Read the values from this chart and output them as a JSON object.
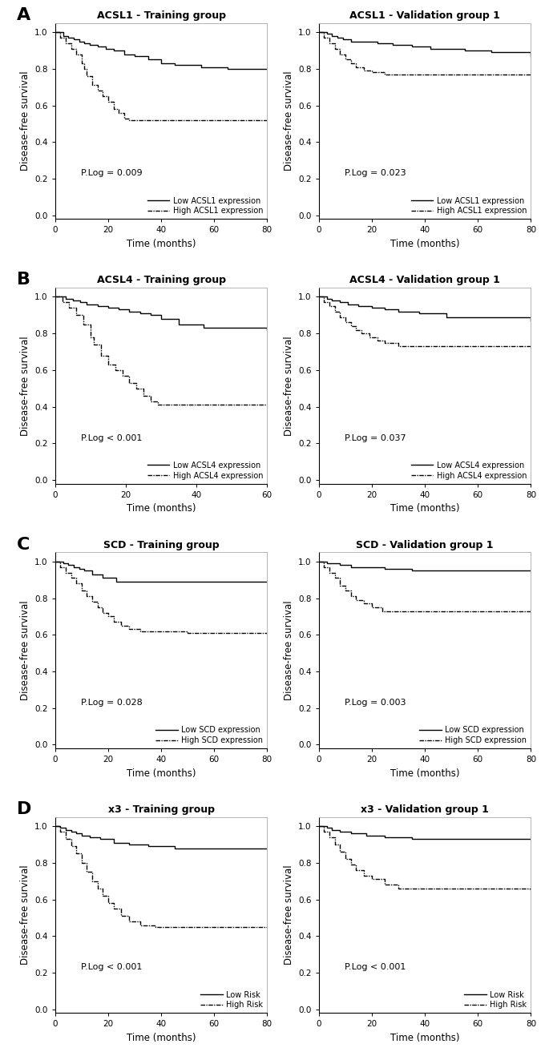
{
  "panels": [
    {
      "row": 0,
      "col": 0,
      "title": "ACSL1 - Training group",
      "plog": "P.Log = 0.009",
      "xmax": 80,
      "low_x": [
        0,
        3,
        5,
        7,
        9,
        11,
        13,
        16,
        19,
        22,
        26,
        30,
        35,
        40,
        45,
        55,
        65,
        80
      ],
      "low_y": [
        1.0,
        0.98,
        0.97,
        0.96,
        0.95,
        0.94,
        0.93,
        0.92,
        0.91,
        0.9,
        0.88,
        0.87,
        0.85,
        0.83,
        0.82,
        0.81,
        0.8,
        0.8
      ],
      "high_x": [
        0,
        2,
        4,
        6,
        8,
        10,
        11,
        12,
        14,
        16,
        18,
        20,
        22,
        24,
        26,
        28,
        80
      ],
      "high_y": [
        1.0,
        0.97,
        0.94,
        0.91,
        0.88,
        0.83,
        0.8,
        0.76,
        0.71,
        0.68,
        0.65,
        0.62,
        0.58,
        0.56,
        0.53,
        0.52,
        0.52
      ],
      "legend_low": "Low ACSL1 expression",
      "legend_high": "High ACSL1 expression",
      "legend_low_italic": "ACSL1",
      "legend_high_italic": "ACSL1"
    },
    {
      "row": 0,
      "col": 1,
      "title": "ACSL1 - Validation group 1",
      "plog": "P.Log = 0.023",
      "xmax": 80,
      "low_x": [
        0,
        3,
        5,
        7,
        9,
        12,
        16,
        22,
        28,
        35,
        42,
        55,
        65,
        80
      ],
      "low_y": [
        1.0,
        0.99,
        0.98,
        0.97,
        0.96,
        0.95,
        0.95,
        0.94,
        0.93,
        0.92,
        0.91,
        0.9,
        0.89,
        0.87
      ],
      "high_x": [
        0,
        2,
        4,
        6,
        8,
        10,
        12,
        14,
        17,
        20,
        25,
        80
      ],
      "high_y": [
        1.0,
        0.97,
        0.94,
        0.91,
        0.88,
        0.85,
        0.83,
        0.81,
        0.79,
        0.78,
        0.77,
        0.77
      ],
      "legend_low": "Low ACSL1 expression",
      "legend_high": "High ACSL1 expression",
      "legend_low_italic": "ACSL1",
      "legend_high_italic": "ACSL1"
    },
    {
      "row": 1,
      "col": 0,
      "title": "ACSL4 - Training group",
      "plog": "P.Log < 0.001",
      "xmax": 60,
      "low_x": [
        0,
        3,
        5,
        7,
        9,
        12,
        15,
        18,
        21,
        24,
        27,
        30,
        35,
        42,
        60
      ],
      "low_y": [
        1.0,
        0.99,
        0.98,
        0.97,
        0.96,
        0.95,
        0.94,
        0.93,
        0.92,
        0.91,
        0.9,
        0.88,
        0.85,
        0.83,
        0.82
      ],
      "high_x": [
        0,
        2,
        4,
        6,
        8,
        10,
        11,
        13,
        15,
        17,
        19,
        21,
        23,
        25,
        27,
        29,
        60
      ],
      "high_y": [
        1.0,
        0.97,
        0.94,
        0.9,
        0.85,
        0.78,
        0.74,
        0.68,
        0.63,
        0.6,
        0.57,
        0.53,
        0.5,
        0.46,
        0.43,
        0.41,
        0.41
      ],
      "legend_low": "Low ACSL4 expression",
      "legend_high": "High ACSL4 expression",
      "legend_low_italic": "ACSL4",
      "legend_high_italic": "ACSL4"
    },
    {
      "row": 1,
      "col": 1,
      "title": "ACSL4 - Validation group 1",
      "plog": "P.Log = 0.037",
      "xmax": 80,
      "low_x": [
        0,
        3,
        5,
        8,
        11,
        15,
        20,
        25,
        30,
        38,
        48,
        80
      ],
      "low_y": [
        1.0,
        0.99,
        0.98,
        0.97,
        0.96,
        0.95,
        0.94,
        0.93,
        0.92,
        0.91,
        0.89,
        0.87
      ],
      "high_x": [
        0,
        2,
        4,
        6,
        8,
        10,
        12,
        14,
        16,
        19,
        22,
        25,
        30,
        80
      ],
      "high_y": [
        1.0,
        0.97,
        0.95,
        0.92,
        0.89,
        0.86,
        0.84,
        0.82,
        0.8,
        0.78,
        0.76,
        0.75,
        0.73,
        0.73
      ],
      "legend_low": "Low ACSL4 expression",
      "legend_high": "High ACSL4 expression",
      "legend_low_italic": "ACSL4",
      "legend_high_italic": "ACSL4"
    },
    {
      "row": 2,
      "col": 0,
      "title": "SCD - Training group",
      "plog": "P.Log = 0.028",
      "xmax": 80,
      "low_x": [
        0,
        3,
        5,
        7,
        9,
        11,
        14,
        18,
        23,
        80
      ],
      "low_y": [
        1.0,
        0.99,
        0.98,
        0.97,
        0.96,
        0.95,
        0.93,
        0.91,
        0.89,
        0.89
      ],
      "high_x": [
        0,
        2,
        4,
        6,
        8,
        10,
        12,
        14,
        16,
        18,
        20,
        22,
        25,
        28,
        32,
        38,
        50,
        80
      ],
      "high_y": [
        1.0,
        0.97,
        0.94,
        0.91,
        0.88,
        0.84,
        0.81,
        0.78,
        0.75,
        0.72,
        0.7,
        0.67,
        0.65,
        0.63,
        0.62,
        0.62,
        0.61,
        0.61
      ],
      "legend_low": "Low SCD expression",
      "legend_high": "High SCD expression",
      "legend_low_italic": "SCD",
      "legend_high_italic": "SCD"
    },
    {
      "row": 2,
      "col": 1,
      "title": "SCD - Validation group 1",
      "plog": "P.Log = 0.003",
      "xmax": 80,
      "low_x": [
        0,
        3,
        5,
        8,
        12,
        18,
        25,
        35,
        80
      ],
      "low_y": [
        1.0,
        0.99,
        0.99,
        0.98,
        0.97,
        0.97,
        0.96,
        0.95,
        0.95
      ],
      "high_x": [
        0,
        2,
        4,
        6,
        8,
        10,
        12,
        14,
        17,
        20,
        24,
        80
      ],
      "high_y": [
        1.0,
        0.97,
        0.94,
        0.91,
        0.87,
        0.84,
        0.81,
        0.79,
        0.77,
        0.75,
        0.73,
        0.73
      ],
      "legend_low": "Low SCD expression",
      "legend_high": "High SCD expression",
      "legend_low_italic": "SCD",
      "legend_high_italic": "SCD"
    },
    {
      "row": 3,
      "col": 0,
      "title": "x3 - Training group",
      "plog": "P.Log < 0.001",
      "xmax": 80,
      "low_x": [
        0,
        2,
        4,
        6,
        8,
        10,
        13,
        17,
        22,
        28,
        35,
        45,
        80
      ],
      "low_y": [
        1.0,
        0.99,
        0.98,
        0.97,
        0.96,
        0.95,
        0.94,
        0.93,
        0.91,
        0.9,
        0.89,
        0.88,
        0.88
      ],
      "high_x": [
        0,
        2,
        4,
        6,
        8,
        10,
        12,
        14,
        16,
        18,
        20,
        22,
        25,
        28,
        32,
        38,
        80
      ],
      "high_y": [
        1.0,
        0.97,
        0.93,
        0.89,
        0.85,
        0.8,
        0.75,
        0.7,
        0.66,
        0.62,
        0.58,
        0.55,
        0.51,
        0.48,
        0.46,
        0.45,
        0.45
      ],
      "legend_low": "Low Risk",
      "legend_high": "High Risk",
      "legend_low_italic": "",
      "legend_high_italic": ""
    },
    {
      "row": 3,
      "col": 1,
      "title": "x3 - Validation group 1",
      "plog": "P.Log < 0.001",
      "xmax": 80,
      "low_x": [
        0,
        3,
        5,
        8,
        12,
        18,
        25,
        35,
        45,
        80
      ],
      "low_y": [
        1.0,
        0.99,
        0.98,
        0.97,
        0.96,
        0.95,
        0.94,
        0.93,
        0.93,
        0.93
      ],
      "high_x": [
        0,
        2,
        4,
        6,
        8,
        10,
        12,
        14,
        17,
        20,
        25,
        30,
        80
      ],
      "high_y": [
        1.0,
        0.97,
        0.94,
        0.9,
        0.86,
        0.82,
        0.79,
        0.76,
        0.73,
        0.71,
        0.68,
        0.66,
        0.65
      ],
      "legend_low": "Low Risk",
      "legend_high": "High Risk",
      "legend_low_italic": "",
      "legend_high_italic": ""
    }
  ],
  "panel_labels": [
    "A",
    "B",
    "C",
    "D"
  ],
  "bg_color": "#ffffff",
  "line_color": "#000000",
  "ylabel": "Disease-free survival",
  "xlabel": "Time (months)"
}
